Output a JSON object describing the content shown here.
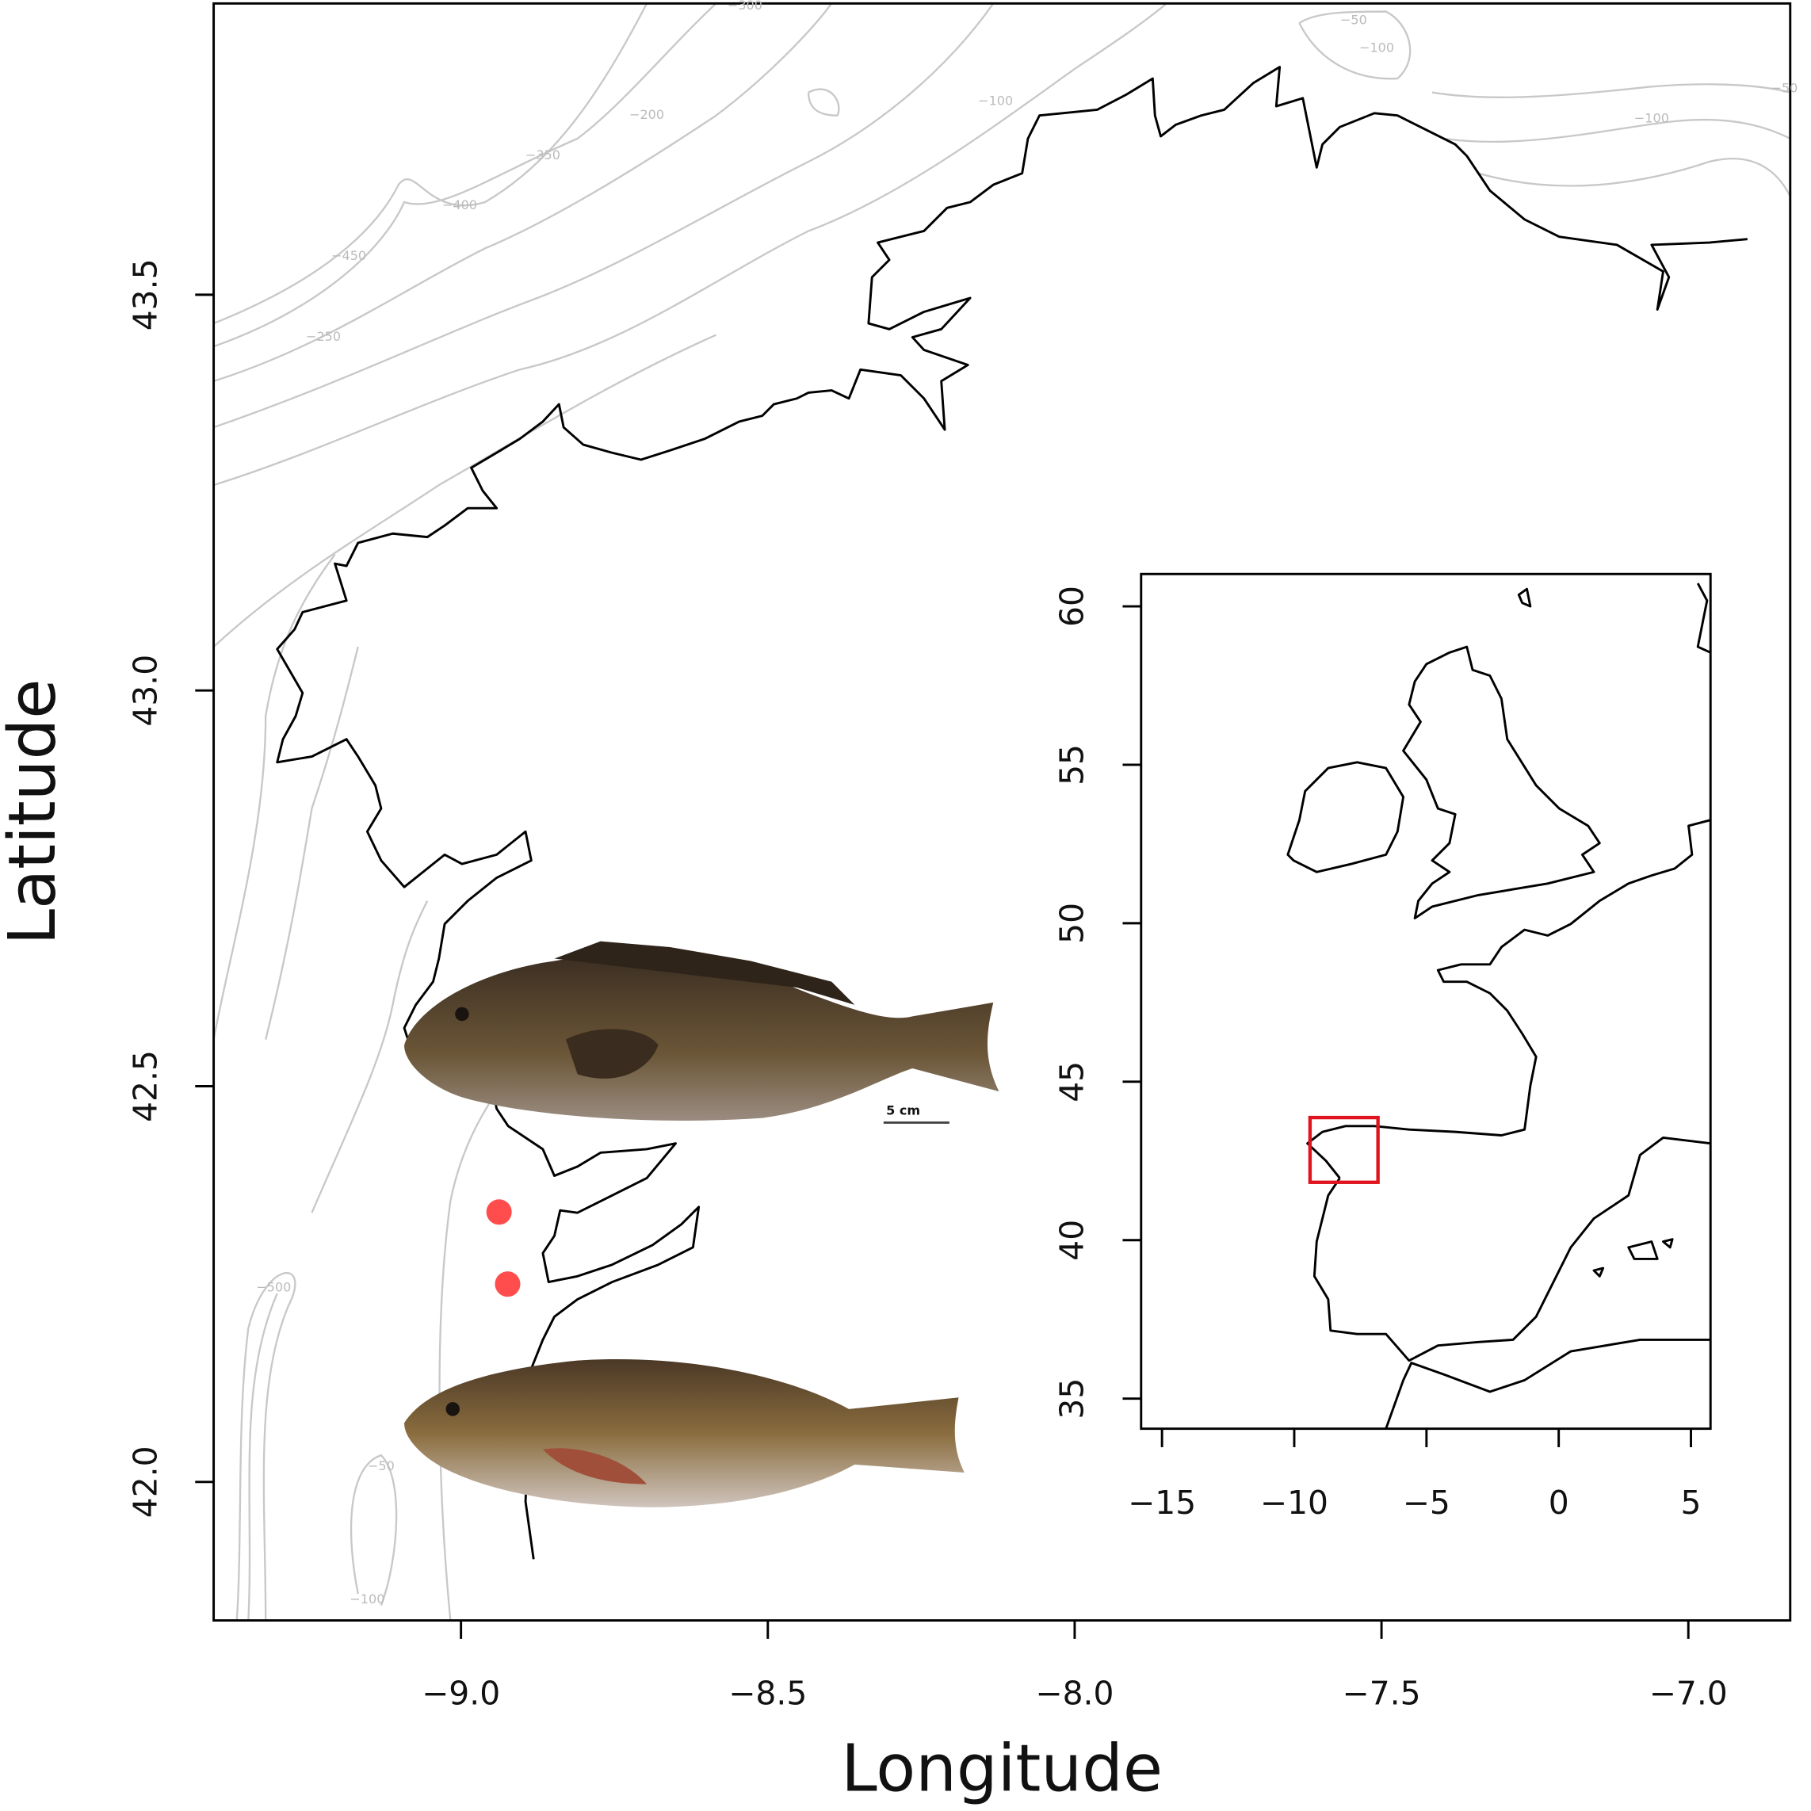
{
  "chart_data": [
    {
      "type": "map",
      "xlabel": "Longitude",
      "ylabel": "Latitude",
      "xlim": [
        -9.403,
        -6.834
      ],
      "ylim": [
        41.825,
        43.868
      ],
      "xticks": [
        {
          "value": -9,
          "label": "−9.0"
        },
        {
          "value": -8.5,
          "label": "−8.5"
        },
        {
          "value": -8,
          "label": "−8.0"
        },
        {
          "value": -7.5,
          "label": "−7.5"
        },
        {
          "value": -7,
          "label": "−7.0"
        }
      ],
      "yticks": [
        {
          "value": 42,
          "label": "42.0"
        },
        42.5,
        {
          "value": 43,
          "label": "43.0"
        },
        43.5
      ],
      "points": {
        "x": [
          -8.938,
          -8.924
        ],
        "y": [
          42.341,
          42.25
        ],
        "color": "#ff2020"
      },
      "contour_labels": [
        "−300",
        "−50",
        "−100",
        "−50",
        "−100",
        "−100",
        "−200",
        "−350",
        "−400",
        "−450",
        "−250",
        "−500",
        "−50",
        "−100"
      ],
      "scale_bar_label": "5 cm"
    },
    {
      "type": "map",
      "xlim": [
        -15.79,
        5.74
      ],
      "ylim": [
        34.05,
        61.02
      ],
      "xticks": [
        {
          "value": -15,
          "label": "−15"
        },
        {
          "value": -10,
          "label": "−10"
        },
        {
          "value": -5,
          "label": "−5"
        },
        0,
        5
      ],
      "yticks": [
        35,
        40,
        45,
        50,
        55,
        60
      ],
      "box_color": "#e0141e"
    }
  ]
}
